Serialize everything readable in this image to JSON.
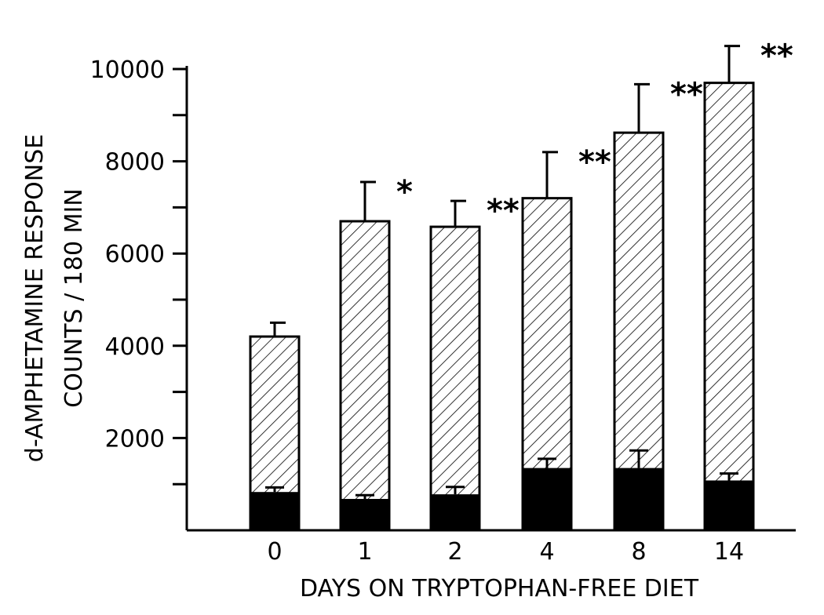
{
  "chart_data": {
    "type": "bar",
    "xlabel": "DAYS ON TRYPTOPHAN-FREE DIET",
    "ylabel": [
      "d-AMPHETAMINE RESPONSE",
      "COUNTS / 180 MIN"
    ],
    "ylim": [
      0,
      10000
    ],
    "yticks_labeled": [
      "2000",
      "4000",
      "6000",
      "8000",
      "10000"
    ],
    "categories": [
      "0",
      "1",
      "2",
      "4",
      "8",
      "14"
    ],
    "series": [
      {
        "values": [
          4200,
          6700,
          6580,
          7200,
          8620,
          9700
        ],
        "error": [
          300,
          850,
          560,
          1000,
          1050,
          800
        ],
        "fill": "hatched"
      },
      {
        "values": [
          830,
          680,
          780,
          1350,
          1350,
          1080
        ],
        "error": [
          100,
          80,
          160,
          200,
          380,
          150
        ],
        "fill": "solid"
      }
    ],
    "annotations": [
      "",
      "*",
      "**",
      "**",
      "**",
      "**"
    ],
    "grid": false,
    "legend": "none",
    "colors": {
      "ink": "#000000",
      "background": "#ffffff"
    }
  }
}
